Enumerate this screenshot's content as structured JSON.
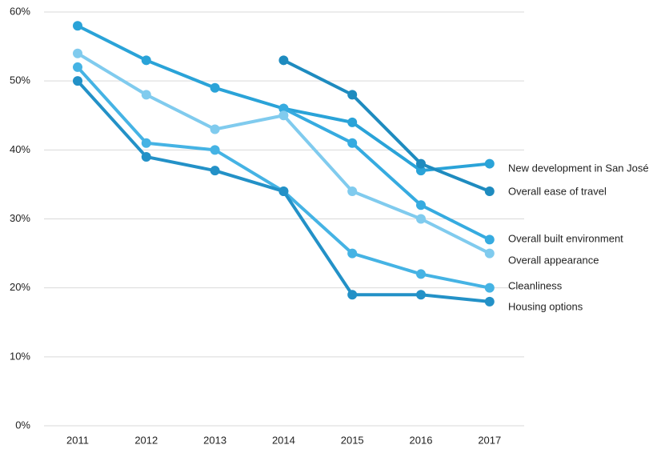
{
  "chart_data": {
    "type": "line",
    "categories": [
      "2011",
      "2012",
      "2013",
      "2014",
      "2015",
      "2016",
      "2017"
    ],
    "series": [
      {
        "name": "New development in San José",
        "color": "#2aa3d8",
        "values": [
          58,
          53,
          49,
          46,
          44,
          37,
          38
        ]
      },
      {
        "name": "Overall ease of travel",
        "color": "#1e8bbf",
        "values": [
          null,
          null,
          null,
          53,
          48,
          38,
          34
        ]
      },
      {
        "name": "Overall built environment",
        "color": "#36abe0",
        "values": [
          null,
          null,
          null,
          46,
          41,
          32,
          27
        ]
      },
      {
        "name": "Overall appearance",
        "color": "#80cbee",
        "values": [
          54,
          48,
          43,
          45,
          34,
          30,
          25
        ]
      },
      {
        "name": "Cleanliness",
        "color": "#45b3e4",
        "values": [
          52,
          41,
          40,
          34,
          25,
          22,
          20
        ]
      },
      {
        "name": "Housing options",
        "color": "#2391c7",
        "values": [
          50,
          39,
          37,
          34,
          19,
          19,
          18
        ]
      }
    ],
    "ylim": [
      0,
      60
    ],
    "yticks": [
      {
        "value": 0,
        "label": "0%"
      },
      {
        "value": 10,
        "label": "10%"
      },
      {
        "value": 20,
        "label": "20%"
      },
      {
        "value": 30,
        "label": "30%"
      },
      {
        "value": 40,
        "label": "40%"
      },
      {
        "value": 50,
        "label": "50%"
      },
      {
        "value": 60,
        "label": "60%"
      }
    ],
    "grid": true
  }
}
